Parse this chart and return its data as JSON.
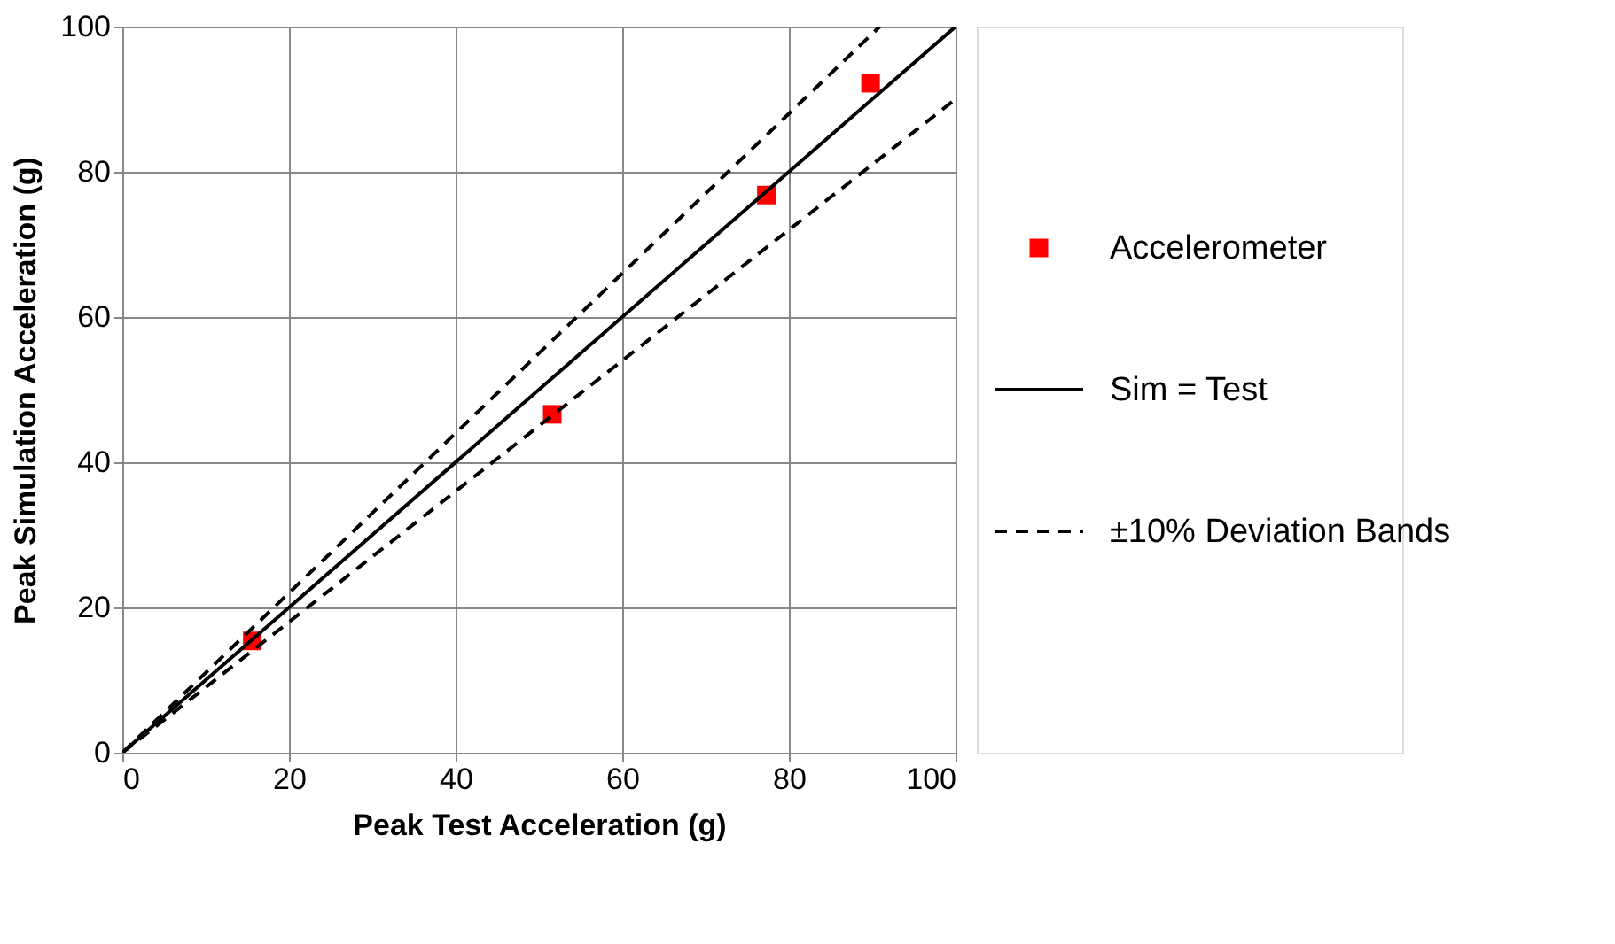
{
  "chart_data": {
    "type": "scatter",
    "xlabel": "Peak Test Acceleration (g)",
    "ylabel": "Peak Simulation Acceleration (g)",
    "xlim": [
      0,
      100
    ],
    "ylim": [
      0,
      100
    ],
    "xticks": [
      0,
      20,
      40,
      60,
      80,
      100
    ],
    "yticks": [
      0,
      20,
      40,
      60,
      80,
      100
    ],
    "grid": true,
    "legend": "right",
    "series": [
      {
        "name": "Accelerometer",
        "marker": "square",
        "color": "#ff0000",
        "x": [
          15.6,
          51.6,
          77.3,
          89.8
        ],
        "values": [
          15.4,
          46.6,
          76.8,
          92.2
        ]
      },
      {
        "name": "Sim = Test",
        "type": "line",
        "line_style": "solid",
        "color": "#000000",
        "x": [
          0,
          100
        ],
        "values": [
          0,
          100
        ]
      },
      {
        "name": "±10% Deviation Bands",
        "type": "line",
        "line_style": "dashed",
        "color": "#000000",
        "x": [
          0,
          90.9
        ],
        "values": [
          0,
          100
        ]
      },
      {
        "type": "line",
        "line_style": "dashed",
        "color": "#000000",
        "x": [
          0,
          100
        ],
        "values": [
          0,
          90
        ]
      }
    ]
  }
}
